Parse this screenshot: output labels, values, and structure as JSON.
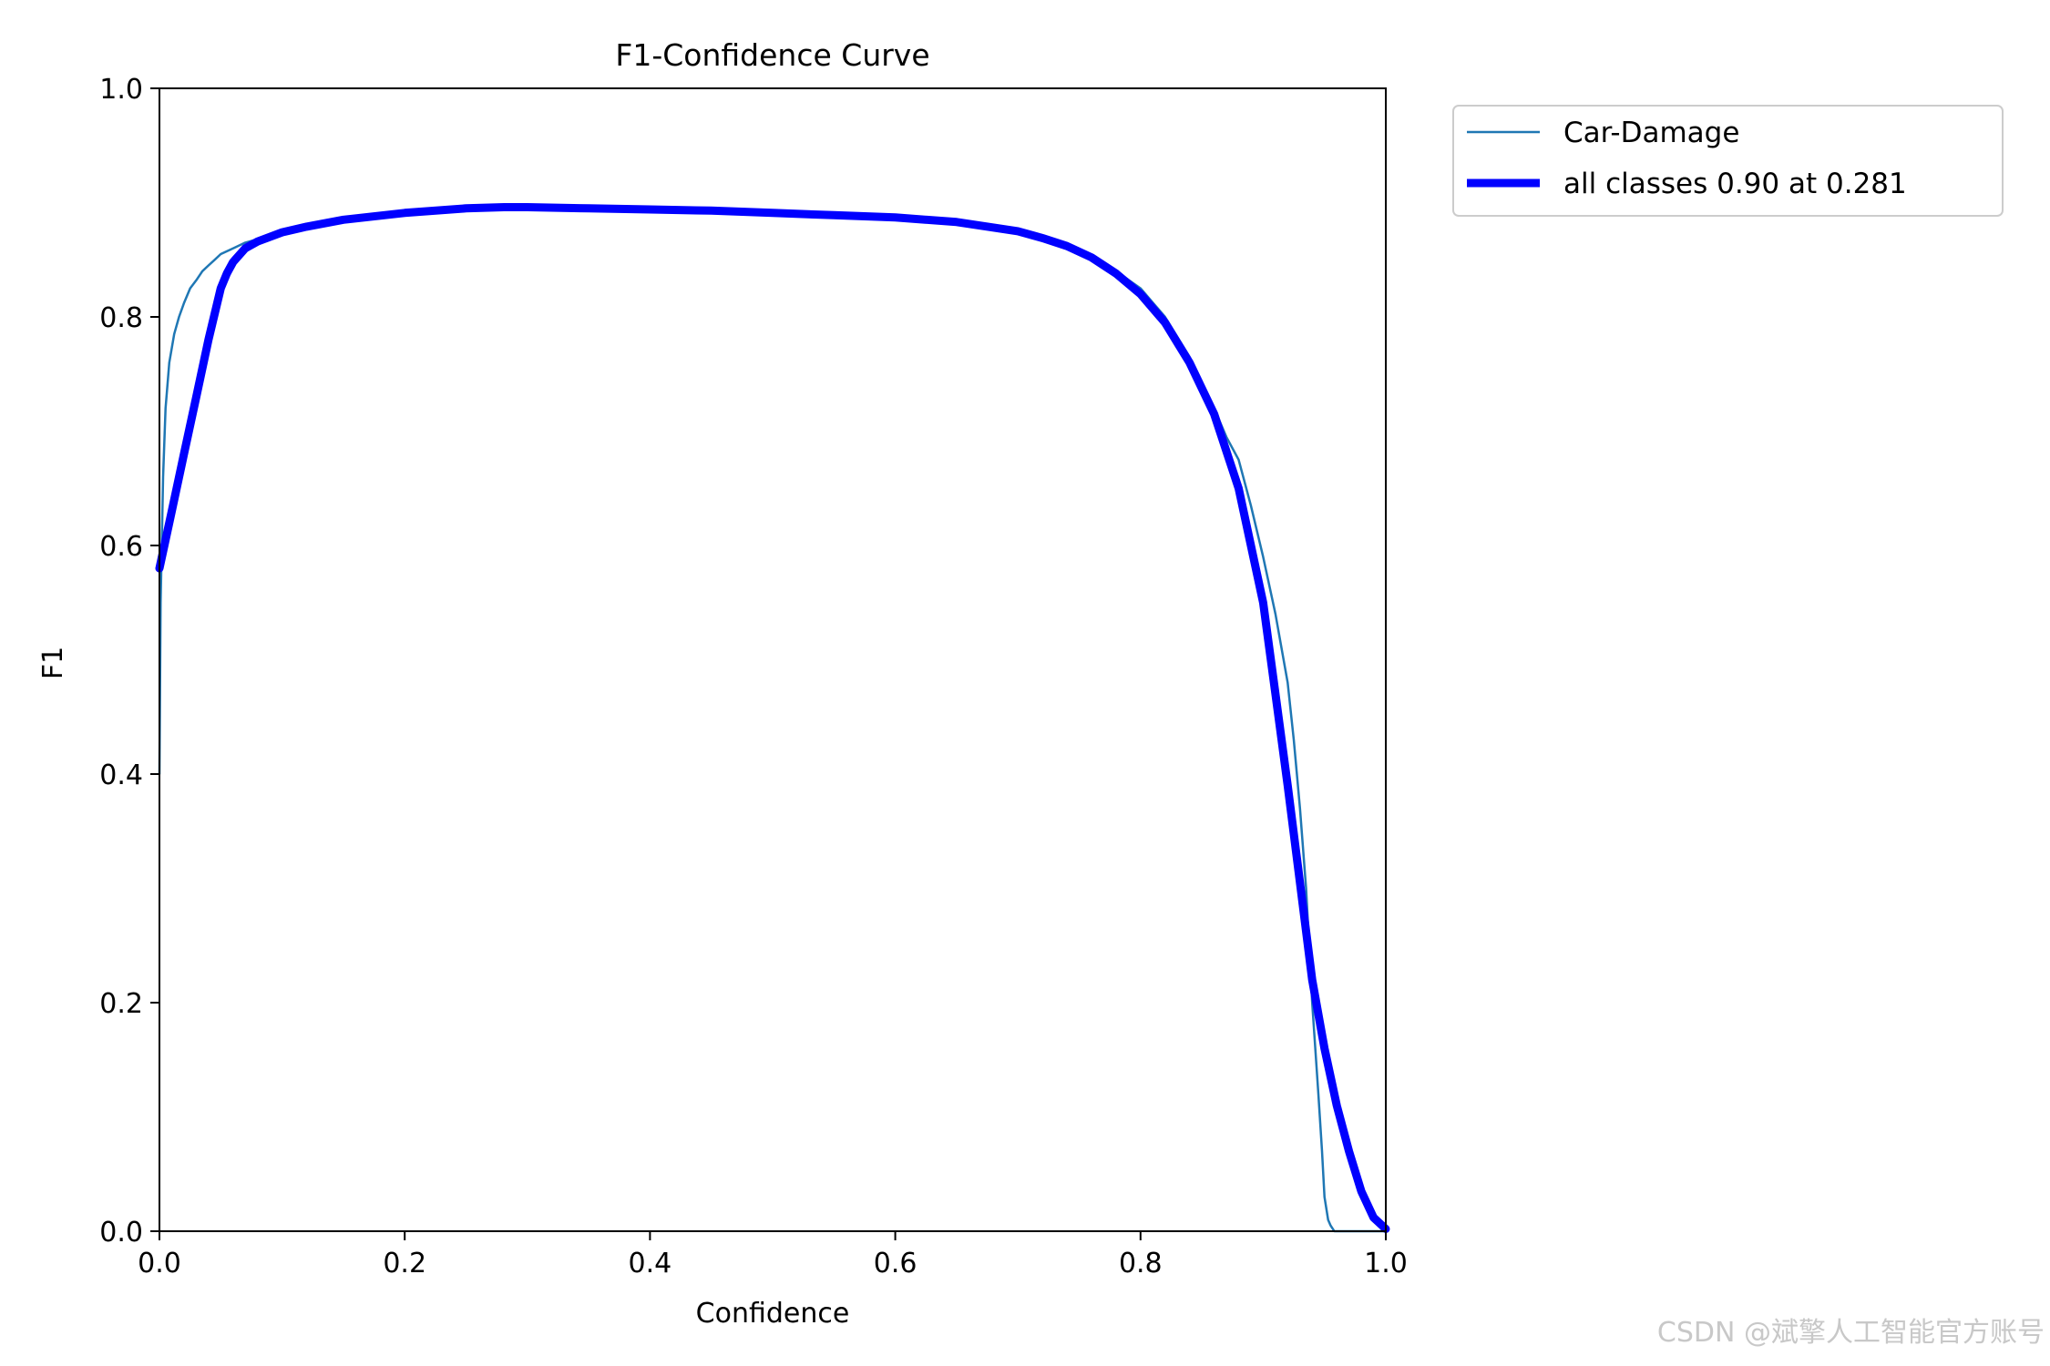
{
  "chart_data": {
    "type": "line",
    "title": "F1-Confidence Curve",
    "xlabel": "Confidence",
    "ylabel": "F1",
    "xlim": [
      0.0,
      1.0
    ],
    "ylim": [
      0.0,
      1.0
    ],
    "xticks": [
      "0.0",
      "0.2",
      "0.4",
      "0.6",
      "0.8",
      "1.0"
    ],
    "yticks": [
      "0.0",
      "0.2",
      "0.4",
      "0.6",
      "0.8",
      "1.0"
    ],
    "grid": false,
    "legend_position": "outside upper-right",
    "series": [
      {
        "name": "Car-Damage",
        "color": "#1f77b4",
        "line": "thin",
        "x": [
          0.0,
          0.001,
          0.003,
          0.005,
          0.008,
          0.012,
          0.016,
          0.02,
          0.025,
          0.03,
          0.035,
          0.04,
          0.045,
          0.05,
          0.06,
          0.07,
          0.08,
          0.09,
          0.1,
          0.12,
          0.15,
          0.2,
          0.25,
          0.3,
          0.35,
          0.4,
          0.45,
          0.5,
          0.55,
          0.6,
          0.65,
          0.7,
          0.72,
          0.74,
          0.76,
          0.78,
          0.8,
          0.82,
          0.84,
          0.86,
          0.87,
          0.88,
          0.89,
          0.9,
          0.91,
          0.92,
          0.925,
          0.93,
          0.935,
          0.94,
          0.945,
          0.948,
          0.95,
          0.953,
          0.955,
          0.958,
          0.96,
          0.97,
          0.98,
          1.0
        ],
        "y": [
          0.4,
          0.55,
          0.66,
          0.72,
          0.76,
          0.785,
          0.8,
          0.812,
          0.825,
          0.832,
          0.84,
          0.845,
          0.85,
          0.855,
          0.86,
          0.865,
          0.868,
          0.87,
          0.872,
          0.878,
          0.886,
          0.893,
          0.896,
          0.897,
          0.896,
          0.895,
          0.893,
          0.891,
          0.889,
          0.887,
          0.882,
          0.874,
          0.868,
          0.86,
          0.852,
          0.84,
          0.825,
          0.8,
          0.765,
          0.72,
          0.695,
          0.675,
          0.635,
          0.59,
          0.54,
          0.48,
          0.43,
          0.37,
          0.3,
          0.2,
          0.12,
          0.07,
          0.03,
          0.01,
          0.005,
          0.0,
          0.0,
          0.0,
          0.0,
          0.0
        ]
      },
      {
        "name": "all classes 0.90 at 0.281",
        "color": "#0000ff",
        "line": "thick",
        "x": [
          0.0,
          0.01,
          0.02,
          0.03,
          0.04,
          0.05,
          0.055,
          0.06,
          0.07,
          0.08,
          0.1,
          0.12,
          0.15,
          0.2,
          0.25,
          0.281,
          0.3,
          0.35,
          0.4,
          0.45,
          0.5,
          0.55,
          0.6,
          0.65,
          0.7,
          0.72,
          0.74,
          0.76,
          0.78,
          0.8,
          0.82,
          0.84,
          0.86,
          0.88,
          0.9,
          0.91,
          0.92,
          0.93,
          0.94,
          0.95,
          0.96,
          0.97,
          0.98,
          0.99,
          1.0
        ],
        "y": [
          0.58,
          0.63,
          0.68,
          0.73,
          0.78,
          0.825,
          0.838,
          0.848,
          0.86,
          0.866,
          0.874,
          0.879,
          0.885,
          0.891,
          0.895,
          0.896,
          0.896,
          0.895,
          0.894,
          0.893,
          0.891,
          0.889,
          0.887,
          0.883,
          0.875,
          0.869,
          0.862,
          0.852,
          0.838,
          0.82,
          0.795,
          0.76,
          0.715,
          0.65,
          0.55,
          0.47,
          0.39,
          0.305,
          0.22,
          0.16,
          0.11,
          0.07,
          0.035,
          0.012,
          0.002
        ]
      }
    ]
  },
  "watermark": "CSDN @斌擎人工智能官方账号"
}
